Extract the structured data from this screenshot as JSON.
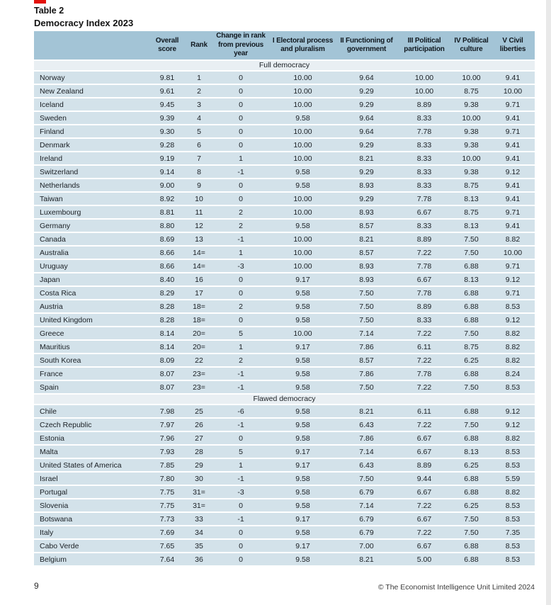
{
  "page": {
    "number": "9",
    "copyright": "© The Economist Intelligence Unit Limited 2024"
  },
  "colors": {
    "accent_red": "#e3120b",
    "header_band": "#a3c4d6",
    "row_band": "#d3e2ea",
    "section_band": "#e9eff3"
  },
  "table": {
    "label": "Table 2",
    "title": "Democracy Index 2023",
    "columns": [
      "Overall\nscore",
      "Rank",
      "Change in rank\nfrom previous year",
      "I Electoral process\nand pluralism",
      "II Functioning of\ngovernment",
      "III Political\nparticipation",
      "IV Political\nculture",
      "V Civil\nliberties"
    ],
    "sections": [
      {
        "name": "Full democracy",
        "rows": [
          [
            "Norway",
            "9.81",
            "1",
            "0",
            "10.00",
            "9.64",
            "10.00",
            "10.00",
            "9.41"
          ],
          [
            "New Zealand",
            "9.61",
            "2",
            "0",
            "10.00",
            "9.29",
            "10.00",
            "8.75",
            "10.00"
          ],
          [
            "Iceland",
            "9.45",
            "3",
            "0",
            "10.00",
            "9.29",
            "8.89",
            "9.38",
            "9.71"
          ],
          [
            "Sweden",
            "9.39",
            "4",
            "0",
            "9.58",
            "9.64",
            "8.33",
            "10.00",
            "9.41"
          ],
          [
            "Finland",
            "9.30",
            "5",
            "0",
            "10.00",
            "9.64",
            "7.78",
            "9.38",
            "9.71"
          ],
          [
            "Denmark",
            "9.28",
            "6",
            "0",
            "10.00",
            "9.29",
            "8.33",
            "9.38",
            "9.41"
          ],
          [
            "Ireland",
            "9.19",
            "7",
            "1",
            "10.00",
            "8.21",
            "8.33",
            "10.00",
            "9.41"
          ],
          [
            "Switzerland",
            "9.14",
            "8",
            "-1",
            "9.58",
            "9.29",
            "8.33",
            "9.38",
            "9.12"
          ],
          [
            "Netherlands",
            "9.00",
            "9",
            "0",
            "9.58",
            "8.93",
            "8.33",
            "8.75",
            "9.41"
          ],
          [
            "Taiwan",
            "8.92",
            "10",
            "0",
            "10.00",
            "9.29",
            "7.78",
            "8.13",
            "9.41"
          ],
          [
            "Luxembourg",
            "8.81",
            "11",
            "2",
            "10.00",
            "8.93",
            "6.67",
            "8.75",
            "9.71"
          ],
          [
            "Germany",
            "8.80",
            "12",
            "2",
            "9.58",
            "8.57",
            "8.33",
            "8.13",
            "9.41"
          ],
          [
            "Canada",
            "8.69",
            "13",
            "-1",
            "10.00",
            "8.21",
            "8.89",
            "7.50",
            "8.82"
          ],
          [
            "Australia",
            "8.66",
            "14=",
            "1",
            "10.00",
            "8.57",
            "7.22",
            "7.50",
            "10.00"
          ],
          [
            "Uruguay",
            "8.66",
            "14=",
            "-3",
            "10.00",
            "8.93",
            "7.78",
            "6.88",
            "9.71"
          ],
          [
            "Japan",
            "8.40",
            "16",
            "0",
            "9.17",
            "8.93",
            "6.67",
            "8.13",
            "9.12"
          ],
          [
            "Costa Rica",
            "8.29",
            "17",
            "0",
            "9.58",
            "7.50",
            "7.78",
            "6.88",
            "9.71"
          ],
          [
            "Austria",
            "8.28",
            "18=",
            "2",
            "9.58",
            "7.50",
            "8.89",
            "6.88",
            "8.53"
          ],
          [
            "United Kingdom",
            "8.28",
            "18=",
            "0",
            "9.58",
            "7.50",
            "8.33",
            "6.88",
            "9.12"
          ],
          [
            "Greece",
            "8.14",
            "20=",
            "5",
            "10.00",
            "7.14",
            "7.22",
            "7.50",
            "8.82"
          ],
          [
            "Mauritius",
            "8.14",
            "20=",
            "1",
            "9.17",
            "7.86",
            "6.11",
            "8.75",
            "8.82"
          ],
          [
            "South Korea",
            "8.09",
            "22",
            "2",
            "9.58",
            "8.57",
            "7.22",
            "6.25",
            "8.82"
          ],
          [
            "France",
            "8.07",
            "23=",
            "-1",
            "9.58",
            "7.86",
            "7.78",
            "6.88",
            "8.24"
          ],
          [
            "Spain",
            "8.07",
            "23=",
            "-1",
            "9.58",
            "7.50",
            "7.22",
            "7.50",
            "8.53"
          ]
        ]
      },
      {
        "name": "Flawed democracy",
        "rows": [
          [
            "Chile",
            "7.98",
            "25",
            "-6",
            "9.58",
            "8.21",
            "6.11",
            "6.88",
            "9.12"
          ],
          [
            "Czech Republic",
            "7.97",
            "26",
            "-1",
            "9.58",
            "6.43",
            "7.22",
            "7.50",
            "9.12"
          ],
          [
            "Estonia",
            "7.96",
            "27",
            "0",
            "9.58",
            "7.86",
            "6.67",
            "6.88",
            "8.82"
          ],
          [
            "Malta",
            "7.93",
            "28",
            "5",
            "9.17",
            "7.14",
            "6.67",
            "8.13",
            "8.53"
          ],
          [
            "United States of America",
            "7.85",
            "29",
            "1",
            "9.17",
            "6.43",
            "8.89",
            "6.25",
            "8.53"
          ],
          [
            "Israel",
            "7.80",
            "30",
            "-1",
            "9.58",
            "7.50",
            "9.44",
            "6.88",
            "5.59"
          ],
          [
            "Portugal",
            "7.75",
            "31=",
            "-3",
            "9.58",
            "6.79",
            "6.67",
            "6.88",
            "8.82"
          ],
          [
            "Slovenia",
            "7.75",
            "31=",
            "0",
            "9.58",
            "7.14",
            "7.22",
            "6.25",
            "8.53"
          ],
          [
            "Botswana",
            "7.73",
            "33",
            "-1",
            "9.17",
            "6.79",
            "6.67",
            "7.50",
            "8.53"
          ],
          [
            "Italy",
            "7.69",
            "34",
            "0",
            "9.58",
            "6.79",
            "7.22",
            "7.50",
            "7.35"
          ],
          [
            "Cabo Verde",
            "7.65",
            "35",
            "0",
            "9.17",
            "7.00",
            "6.67",
            "6.88",
            "8.53"
          ],
          [
            "Belgium",
            "7.64",
            "36",
            "0",
            "9.58",
            "8.21",
            "5.00",
            "6.88",
            "8.53"
          ]
        ]
      }
    ]
  }
}
